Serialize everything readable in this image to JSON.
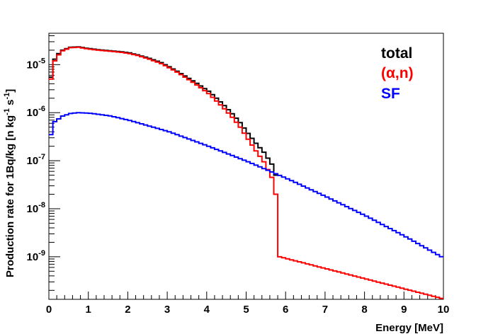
{
  "chart_data": {
    "type": "line",
    "style": "histogram-step",
    "xlabel": "Energy [MeV]",
    "ylabel": "Production rate for 1Bq/kg [n kg^-1 s^-1]",
    "ylabel_parts": {
      "main": "Production rate for 1Bq/kg [n kg",
      "sup1": "-1",
      "mid": " s",
      "sup2": "-1",
      "end": "]"
    },
    "xlim": [
      0,
      10
    ],
    "ylim": [
      1.3e-10,
      4.5e-05
    ],
    "yscale": "log",
    "grid": false,
    "legend_placement": "top-right",
    "x_ticks": [
      "0",
      "1",
      "2",
      "3",
      "4",
      "5",
      "6",
      "7",
      "8",
      "9",
      "10"
    ],
    "y_ticks": [
      {
        "base": "10",
        "exp": "-9",
        "value": 1e-09
      },
      {
        "base": "10",
        "exp": "-8",
        "value": 1e-08
      },
      {
        "base": "10",
        "exp": "-7",
        "value": 1e-07
      },
      {
        "base": "10",
        "exp": "-6",
        "value": 1e-06
      },
      {
        "base": "10",
        "exp": "-5",
        "value": 1e-05
      }
    ],
    "series": [
      {
        "name": "total",
        "color": "#000000",
        "x": [
          0.0,
          0.1,
          0.2,
          0.3,
          0.5,
          0.7,
          0.9,
          1.2,
          1.5,
          1.8,
          2.0,
          2.2,
          2.5,
          2.8,
          3.0,
          3.2,
          3.4,
          3.6,
          3.8,
          4.0,
          4.2,
          4.4,
          4.6,
          4.8,
          5.0,
          5.2,
          5.4,
          5.6,
          5.7,
          5.8
        ],
        "values": [
          5.5e-06,
          1.3e-05,
          1.7e-05,
          2e-05,
          2.3e-05,
          2.35e-05,
          2.2e-05,
          2.05e-05,
          1.95e-05,
          1.85e-05,
          1.75e-05,
          1.6e-05,
          1.35e-05,
          1.1e-05,
          9e-06,
          7.3e-06,
          5.8e-06,
          4.6e-06,
          3.6e-06,
          2.8e-06,
          2e-06,
          1.4e-06,
          9.5e-07,
          6.2e-07,
          3.7e-07,
          2.3e-07,
          1.5e-07,
          8.5e-08,
          5e-08,
          1.3e-10
        ]
      },
      {
        "name": "(α,n)",
        "color": "#ff0000",
        "x": [
          0.0,
          0.1,
          0.2,
          0.3,
          0.5,
          0.7,
          0.9,
          1.2,
          1.5,
          1.8,
          2.0,
          2.2,
          2.5,
          2.8,
          3.0,
          3.2,
          3.4,
          3.6,
          3.8,
          4.0,
          4.2,
          4.4,
          4.6,
          4.8,
          5.0,
          5.2,
          5.4,
          5.6,
          5.7,
          5.8,
          10.0
        ],
        "values": [
          5e-06,
          1.2e-05,
          1.6e-05,
          1.95e-05,
          2.25e-05,
          2.3e-05,
          2.15e-05,
          2e-05,
          1.9e-05,
          1.8e-05,
          1.7e-05,
          1.55e-05,
          1.3e-05,
          1.05e-05,
          8.6e-06,
          7e-06,
          5.5e-06,
          4.3e-06,
          3.3e-06,
          2.5e-06,
          1.75e-06,
          1.2e-06,
          8e-07,
          5e-07,
          2.8e-07,
          1.6e-07,
          9.5e-08,
          4.5e-08,
          2e-08,
          1e-09,
          1.3e-10
        ]
      },
      {
        "name": "SF",
        "color": "#0000ff",
        "x": [
          0.0,
          0.1,
          0.3,
          0.5,
          0.7,
          1.0,
          1.5,
          2.0,
          3.0,
          4.0,
          5.0,
          6.0,
          7.0,
          8.0,
          9.0,
          10.0
        ],
        "values": [
          3.5e-07,
          6.5e-07,
          8.5e-07,
          9.6e-07,
          1e-06,
          9.7e-07,
          8.6e-07,
          6.9e-07,
          4e-07,
          2e-07,
          9.5e-08,
          4.2e-08,
          1.75e-08,
          7e-09,
          2.6e-09,
          9e-10
        ]
      }
    ]
  }
}
